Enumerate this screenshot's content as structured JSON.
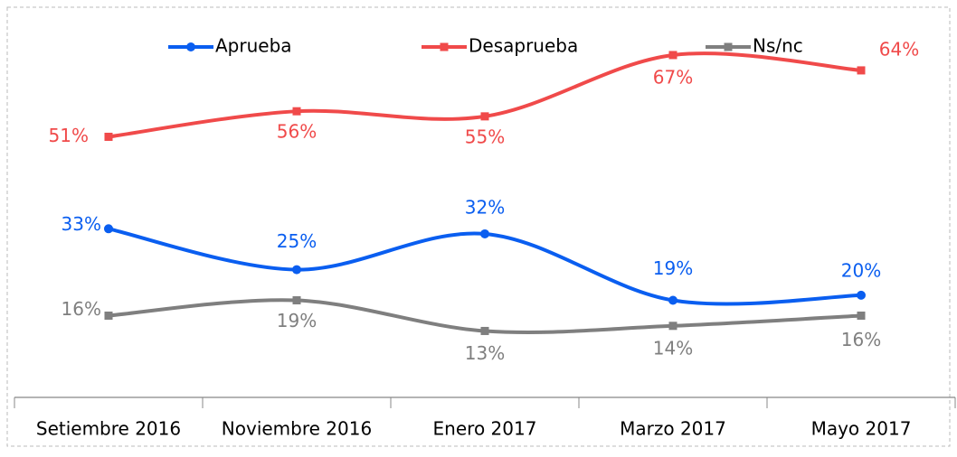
{
  "chart_data": {
    "type": "line",
    "categories": [
      "Setiembre 2016",
      "Noviembre 2016",
      "Enero 2017",
      "Marzo 2017",
      "Mayo 2017"
    ],
    "series": [
      {
        "name": "Aprueba",
        "color": "#0a5ef0",
        "values": [
          33,
          25,
          32,
          19,
          20
        ],
        "value_labels": [
          "33%",
          "25%",
          "32%",
          "19%",
          "20%"
        ]
      },
      {
        "name": "Desaprueba",
        "color": "#f04a4a",
        "values": [
          51,
          56,
          55,
          67,
          64
        ],
        "value_labels": [
          "51%",
          "56%",
          "55%",
          "67%",
          "64%"
        ]
      },
      {
        "name": "Ns/nc",
        "color": "#7f7f7f",
        "values": [
          16,
          19,
          13,
          14,
          16
        ],
        "value_labels": [
          "16%",
          "19%",
          "13%",
          "14%",
          "16%"
        ]
      }
    ],
    "ylim": [
      0,
      75
    ],
    "legend": "top"
  }
}
